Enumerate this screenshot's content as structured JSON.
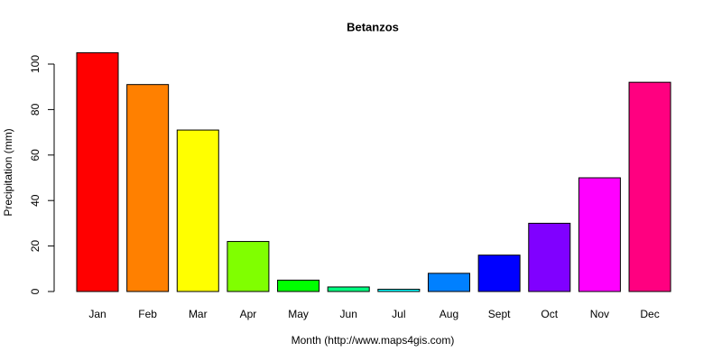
{
  "chart_data": {
    "type": "bar",
    "title": "Betanzos",
    "x_label": "Month (http://www.maps4gis.com)",
    "y_label": "Precipitation (mm)",
    "categories": [
      "Jan",
      "Feb",
      "Mar",
      "Apr",
      "May",
      "Jun",
      "Jul",
      "Aug",
      "Sept",
      "Oct",
      "Nov",
      "Dec"
    ],
    "values": [
      105,
      91,
      71,
      22,
      5,
      2,
      1,
      8,
      16,
      30,
      50,
      92
    ],
    "colors": [
      "#ff0000",
      "#ff8000",
      "#ffff00",
      "#80ff00",
      "#00ff00",
      "#00ff80",
      "#00ffff",
      "#0080ff",
      "#0000ff",
      "#8000ff",
      "#ff00ff",
      "#ff0080"
    ],
    "ylim": [
      0,
      105
    ],
    "yticks": [
      0,
      20,
      40,
      60,
      80,
      100
    ],
    "grid": false
  }
}
